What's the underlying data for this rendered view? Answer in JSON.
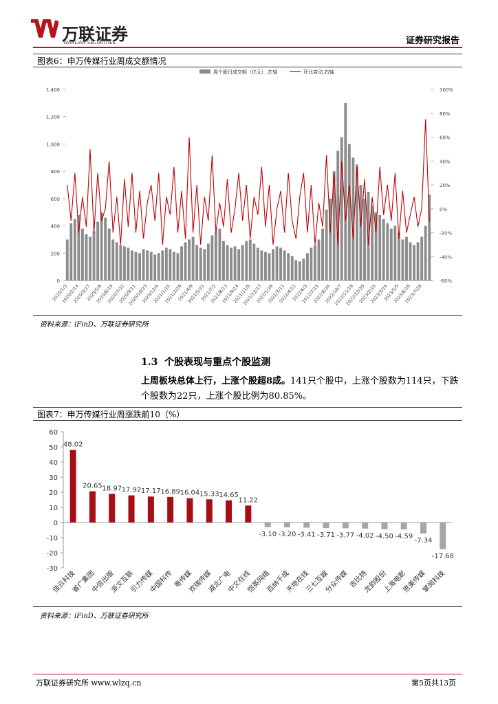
{
  "header": {
    "logo_cn": "万联证券",
    "logo_en": "WANLIAN SECURITIES",
    "report_type": "证券研究报告"
  },
  "chart_data": [
    {
      "type": "combo",
      "title": "图表6：申万传媒行业周成交额情况",
      "source": "资料来源：iFinD、万联证券研究所",
      "categories": [
        "2020/1/3",
        null,
        null,
        "2020/2/14",
        null,
        null,
        "2020/3/27",
        null,
        null,
        "2020/5/8",
        null,
        null,
        "2020/6/19",
        null,
        null,
        "2020/7/31",
        null,
        null,
        "2020/9/11",
        null,
        null,
        "2020/10/23",
        null,
        null,
        "2020/12/4",
        null,
        null,
        "2021/1/15",
        null,
        null,
        "2021/2/26",
        null,
        null,
        "2021/4/9",
        null,
        null,
        "2021/5/21",
        null,
        null,
        "2021/7/2",
        null,
        null,
        "2021/8/13",
        null,
        null,
        "2021/9/24",
        null,
        null,
        "2021/11/5",
        null,
        null,
        "2021/12/17",
        null,
        null,
        "2022/1/28",
        null,
        null,
        "2022/3/11",
        null,
        null,
        "2022/4/22",
        null,
        null,
        "2022/6/3",
        null,
        null,
        "2022/7/15",
        null,
        null,
        "2022/8/26",
        null,
        null,
        "2022/10/7",
        null,
        null,
        "2022/11/18",
        null,
        null,
        "2022/12/30",
        null,
        null,
        "2023/2/10",
        null,
        null,
        "2023/3/24",
        null,
        null,
        "2023/5/5",
        null,
        null,
        "2023/6/16",
        null,
        null,
        "2023/7/28",
        null,
        null
      ],
      "series": [
        {
          "name": "周个股日成交额（亿元）,左轴",
          "type": "bar",
          "color": "#8c8c8c",
          "values": [
            300,
            420,
            450,
            480,
            380,
            340,
            320,
            360,
            430,
            500,
            460,
            380,
            300,
            280,
            260,
            250,
            240,
            220,
            210,
            200,
            230,
            220,
            210,
            190,
            200,
            220,
            240,
            230,
            210,
            200,
            250,
            280,
            300,
            320,
            260,
            240,
            230,
            270,
            330,
            360,
            380,
            290,
            260,
            240,
            250,
            230,
            260,
            290,
            300,
            270,
            240,
            220,
            210,
            200,
            230,
            250,
            240,
            220,
            200,
            180,
            150,
            140,
            160,
            200,
            240,
            260,
            300,
            380,
            520,
            600,
            800,
            950,
            1050,
            1300,
            1000,
            900,
            850,
            700,
            600,
            650,
            550,
            500,
            480,
            450,
            420,
            380,
            400,
            350,
            300,
            320,
            280,
            260,
            280,
            320,
            400,
            630
          ]
        },
        {
          "name": "环比变动,右轴",
          "type": "line",
          "axis": "y2",
          "color": "#c00000",
          "values": [
            20,
            -10,
            30,
            -20,
            10,
            -15,
            50,
            -20,
            30,
            -10,
            0,
            40,
            -20,
            10,
            -30,
            25,
            -15,
            30,
            -20,
            15,
            -25,
            5,
            20,
            -10,
            30,
            -30,
            10,
            -5,
            35,
            -20,
            15,
            -25,
            60,
            -20,
            20,
            -30,
            10,
            -10,
            45,
            -20,
            5,
            -15,
            25,
            -20,
            0,
            30,
            -10,
            20,
            -25,
            10,
            -5,
            35,
            -15,
            20,
            -30,
            0,
            15,
            -20,
            30,
            -10,
            -25,
            10,
            30,
            -20,
            20,
            -30,
            5,
            -15,
            45,
            -20,
            30,
            -30,
            40,
            -10,
            20,
            -25,
            35,
            -15,
            25,
            -30,
            10,
            -20,
            35,
            -5,
            20,
            -10,
            30,
            -25,
            15,
            -20,
            -5,
            10,
            -15,
            0,
            75,
            -10
          ]
        }
      ],
      "ylim": [
        0,
        1400
      ],
      "yticks": [
        0,
        200,
        400,
        600,
        800,
        {
          "value": 1000,
          "label": "1,000"
        },
        {
          "value": 1200,
          "label": "1,200"
        },
        {
          "value": 1400,
          "label": "1,400"
        }
      ],
      "y2lim": [
        -60,
        100
      ],
      "y2ticks": [
        {
          "value": -60,
          "label": "-60%"
        },
        {
          "value": -40,
          "label": "-40%"
        },
        {
          "value": -20,
          "label": "-20%"
        },
        {
          "value": 0,
          "label": "0%"
        },
        {
          "value": 20,
          "label": "20%"
        },
        {
          "value": 40,
          "label": "40%"
        },
        {
          "value": 60,
          "label": "60%"
        },
        {
          "value": 80,
          "label": "80%"
        },
        {
          "value": 100,
          "label": "100%"
        }
      ]
    },
    {
      "type": "bar",
      "title": "图表7：申万传媒行业周涨跌前10（%）",
      "source": "资料来源：iFinD、万联证券研究所",
      "categories": [
        "佳云科技",
        "省广集团",
        "中信出版",
        "浙文互联",
        "引力传媒",
        "中国科传",
        "粤传媒",
        "欢瑞传媒",
        "湖北广电",
        "中文在线",
        "恺英网络",
        "百纳千成",
        "天地在线",
        "三七互娱",
        "分众传媒",
        "吉比特",
        "龙韵股份",
        "上海电影",
        "思美传媒",
        "掌阅科技"
      ],
      "values": [
        48.02,
        20.65,
        18.97,
        17.92,
        17.17,
        16.89,
        16.04,
        15.33,
        14.65,
        11.22,
        -3.1,
        -3.2,
        -3.41,
        -3.71,
        -3.77,
        -4.02,
        -4.5,
        -4.59,
        -7.34,
        -17.68
      ],
      "value_labels": [
        "48.02",
        "20.65",
        "18.97",
        "17.92",
        "17.17",
        "16.89",
        "16.04",
        "15.33",
        "14.65",
        "11.22",
        "-3.10",
        "-3.20",
        "-3.41",
        "-3.71",
        "-3.77",
        "-4.02",
        "-4.50",
        "-4.59",
        "-7.34",
        "-17.68"
      ],
      "positive_color": "#a50f15",
      "negative_color": "#a6a6a6",
      "ylim": [
        -30,
        60
      ],
      "yticks": [
        -30,
        -20,
        -10,
        0,
        10,
        20,
        30,
        40,
        50,
        60
      ]
    }
  ],
  "section": {
    "number": "1.3",
    "title": "个股表现与重点个股监测"
  },
  "paragraph": {
    "bold": "上周板块总体上行，上涨个股超8成。",
    "text": "141只个股中，上涨个股数为114只，下跌个股数为22只，上涨个股比例为80.85%。"
  },
  "footer": {
    "left": "万联证券研究所 www.wlzq.cn",
    "right": "第5页共13页"
  }
}
